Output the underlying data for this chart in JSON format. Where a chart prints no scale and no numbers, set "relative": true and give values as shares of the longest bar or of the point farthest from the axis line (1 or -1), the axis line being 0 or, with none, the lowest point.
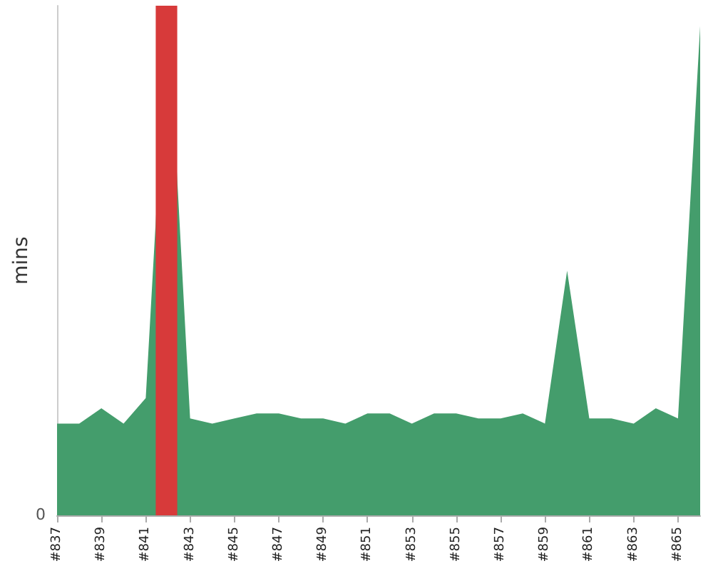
{
  "chart_data": {
    "type": "area",
    "ylabel": "mins",
    "relative": true,
    "x": [
      837,
      838,
      839,
      840,
      841,
      842,
      843,
      844,
      845,
      846,
      847,
      848,
      849,
      850,
      851,
      852,
      853,
      854,
      855,
      856,
      857,
      858,
      859,
      860,
      861,
      862,
      863,
      864,
      865,
      866
    ],
    "series": [
      {
        "color": "#449d6c",
        "values": [
          0.18,
          0.18,
          0.21,
          0.18,
          0.23,
          1,
          0.19,
          0.18,
          0.19,
          0.2,
          0.2,
          0.19,
          0.19,
          0.18,
          0.2,
          0.2,
          0.18,
          0.2,
          0.2,
          0.19,
          0.19,
          0.2,
          0.18,
          0.48,
          0.19,
          0.19,
          0.18,
          0.21,
          0.19,
          0.96
        ]
      }
    ],
    "xlim": [
      837,
      866
    ],
    "xticks": [
      {
        "value": 837,
        "label": "#837"
      },
      {
        "value": 839,
        "label": "#839"
      },
      {
        "value": 841,
        "label": "#841"
      },
      {
        "value": 843,
        "label": "#843"
      },
      {
        "value": 845,
        "label": "#845"
      },
      {
        "value": 847,
        "label": "#847"
      },
      {
        "value": 849,
        "label": "#849"
      },
      {
        "value": 851,
        "label": "#851"
      },
      {
        "value": 853,
        "label": "#853"
      },
      {
        "value": 855,
        "label": "#855"
      },
      {
        "value": 857,
        "label": "#857"
      },
      {
        "value": 859,
        "label": "#859"
      },
      {
        "value": 861,
        "label": "#861"
      },
      {
        "value": 863,
        "label": "#863"
      },
      {
        "value": 865,
        "label": "#865"
      }
    ],
    "bands": [
      {
        "axis": "x",
        "from": 841.45,
        "to": 842.42,
        "color": "#d73a3a"
      }
    ],
    "annotations": [
      "0"
    ]
  }
}
